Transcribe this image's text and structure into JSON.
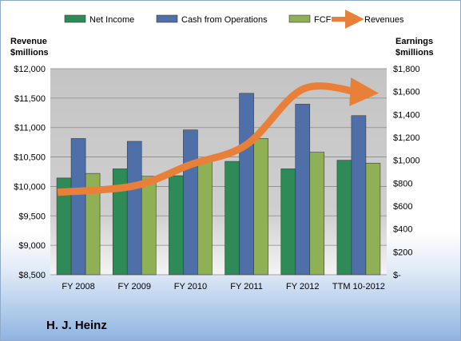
{
  "company": "H. J. Heinz",
  "left_axis_title": [
    "Revenue",
    "$millions"
  ],
  "right_axis_title": [
    "Earnings",
    "$millions"
  ],
  "colors": {
    "net_income": "#2e8b57",
    "cash_from_operations": "#4f6fa8",
    "fcf": "#8fb055",
    "revenues": "#e8803a",
    "plot_background": "#c7c7c7"
  },
  "chart_data": {
    "type": "bar",
    "categories": [
      "FY 2008",
      "FY 2009",
      "FY 2010",
      "FY 2011",
      "FY 2012",
      "TTM 10-2012"
    ],
    "series": [
      {
        "name": "Net Income",
        "axis": "right",
        "values": [
          845,
          925,
          865,
          990,
          925,
          1000
        ]
      },
      {
        "name": "Cash from Operations",
        "axis": "right",
        "values": [
          1190,
          1165,
          1265,
          1585,
          1490,
          1390
        ]
      },
      {
        "name": "FCF",
        "axis": "right",
        "values": [
          885,
          860,
          990,
          1190,
          1070,
          975
        ]
      },
      {
        "name": "Revenues",
        "axis": "left",
        "type": "line",
        "values": [
          9900,
          10010,
          10370,
          10710,
          11650,
          11600
        ]
      }
    ],
    "left_axis": {
      "min": 8500,
      "max": 12000,
      "step": 500,
      "ticks": [
        "$8,500",
        "$9,000",
        "$9,500",
        "$10,000",
        "$10,500",
        "$11,000",
        "$11,500",
        "$12,000"
      ]
    },
    "right_axis": {
      "min": 0,
      "max": 1800,
      "step": 200,
      "ticks": [
        "$-",
        "$200",
        "$400",
        "$600",
        "$800",
        "$1,000",
        "$1,200",
        "$1,400",
        "$1,600",
        "$1,800"
      ]
    },
    "legend_position": "top",
    "grid": true
  }
}
